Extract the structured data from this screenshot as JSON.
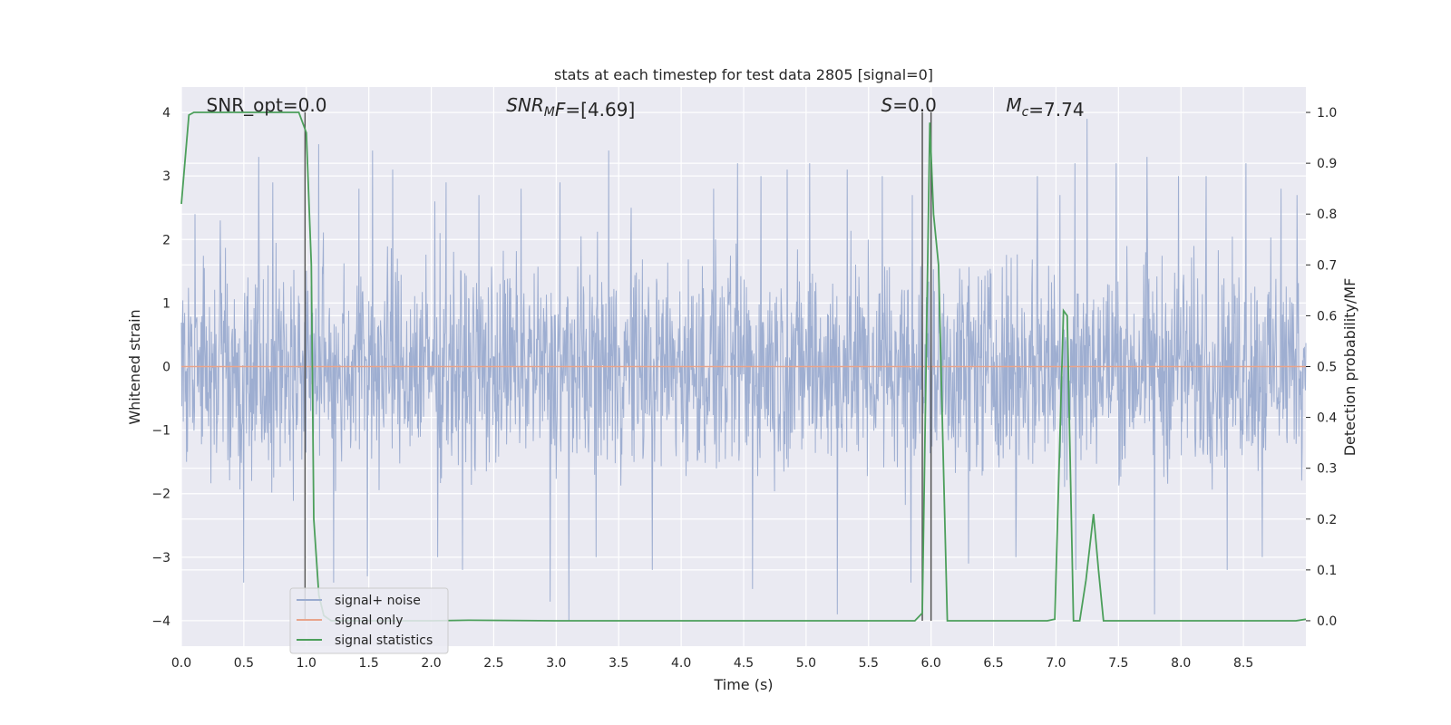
{
  "chart_data": {
    "type": "line",
    "title": "stats at each timestep for test data 2805 [signal=0]",
    "xlabel": "Time (s)",
    "ylabel_left": "Whitened strain",
    "ylabel_right": "Detection probability/MF",
    "xlim": [
      0.0,
      9.0
    ],
    "ylim_left": [
      -4.4,
      4.4
    ],
    "ylim_right": [
      -0.05,
      1.05
    ],
    "grid": true,
    "legend_placement": "lower-left",
    "x_ticks": [
      "0.0",
      "0.5",
      "1.0",
      "1.5",
      "2.0",
      "2.5",
      "3.0",
      "3.5",
      "4.0",
      "4.5",
      "5.0",
      "5.5",
      "6.0",
      "6.5",
      "7.0",
      "7.5",
      "8.0",
      "8.5"
    ],
    "y_left_ticks": [
      "4",
      "3",
      "2",
      "1",
      "0",
      "−1",
      "−2",
      "−3",
      "−4"
    ],
    "y_right_ticks": [
      "1.0",
      "0.9",
      "0.8",
      "0.7",
      "0.6",
      "0.5",
      "0.4",
      "0.3",
      "0.2",
      "0.1",
      "0.0"
    ],
    "annotations": [
      {
        "id": "snr-opt",
        "text": "SNR_opt=0.0",
        "x": 0.2
      },
      {
        "id": "snr-mf",
        "text": "=[4.69]",
        "x": 2.6,
        "math": "SNR",
        "sub": "M",
        "suffix": "F"
      },
      {
        "id": "s-value",
        "text": "=0.0",
        "x": 5.6,
        "math": "S"
      },
      {
        "id": "chirp-mass",
        "text": "=7.74",
        "x": 6.6,
        "math": "M",
        "sub": "c"
      }
    ],
    "vlines": [
      0.99,
      5.93,
      6.0
    ],
    "series": [
      {
        "name": "signal+ noise",
        "color": "#9aabcf",
        "axis": "left",
        "amplitude_envelope": {
          "typical_max": 2.3,
          "typical_min": -2.3,
          "peak_max": 4.0,
          "peak_min": -4.0
        },
        "spikes": [
          [
            0.11,
            2.4
          ],
          [
            0.31,
            2.3
          ],
          [
            0.62,
            3.3
          ],
          [
            0.73,
            2.9
          ],
          [
            1.1,
            3.5
          ],
          [
            1.42,
            2.8
          ],
          [
            1.53,
            3.4
          ],
          [
            1.69,
            3.1
          ],
          [
            2.03,
            2.6
          ],
          [
            2.12,
            2.9
          ],
          [
            2.38,
            2.7
          ],
          [
            2.72,
            2.8
          ],
          [
            3.03,
            2.9
          ],
          [
            3.42,
            3.4
          ],
          [
            3.6,
            2.5
          ],
          [
            4.26,
            2.8
          ],
          [
            4.45,
            3.2
          ],
          [
            4.64,
            3.0
          ],
          [
            4.85,
            3.1
          ],
          [
            5.03,
            3.2
          ],
          [
            5.33,
            3.1
          ],
          [
            5.61,
            3.0
          ],
          [
            5.85,
            2.7
          ],
          [
            6.0,
            3.3
          ],
          [
            6.3,
            3.6
          ],
          [
            6.85,
            3.0
          ],
          [
            7.03,
            2.7
          ],
          [
            7.15,
            3.2
          ],
          [
            7.25,
            3.9
          ],
          [
            7.48,
            3.2
          ],
          [
            7.73,
            3.3
          ],
          [
            7.98,
            3.0
          ],
          [
            8.2,
            3.0
          ],
          [
            8.52,
            3.2
          ],
          [
            8.8,
            2.8
          ],
          [
            8.93,
            2.7
          ],
          [
            0.5,
            -3.4
          ],
          [
            1.22,
            -3.4
          ],
          [
            1.49,
            -3.3
          ],
          [
            2.05,
            -3.0
          ],
          [
            2.25,
            -3.2
          ],
          [
            2.95,
            -3.7
          ],
          [
            3.1,
            -4.0
          ],
          [
            3.32,
            -3.0
          ],
          [
            3.77,
            -3.2
          ],
          [
            4.57,
            -3.5
          ],
          [
            5.25,
            -3.9
          ],
          [
            5.84,
            -3.4
          ],
          [
            6.3,
            -3.1
          ],
          [
            6.68,
            -3.0
          ],
          [
            7.16,
            -3.2
          ],
          [
            7.79,
            -3.9
          ],
          [
            8.37,
            -3.2
          ],
          [
            8.65,
            -3.0
          ]
        ]
      },
      {
        "name": "signal only",
        "color": "#e8a48b",
        "axis": "left",
        "x": [
          0.0,
          9.0
        ],
        "y": [
          0.0,
          0.0
        ]
      },
      {
        "name": "signal statistics",
        "color": "#4c9f5b",
        "axis": "right",
        "x": [
          0.0,
          0.06,
          0.1,
          0.2,
          0.5,
          0.8,
          0.94,
          1.0,
          1.04,
          1.06,
          1.1,
          1.14,
          1.2,
          1.3,
          1.5,
          2.0,
          2.3,
          3.0,
          4.0,
          5.0,
          5.5,
          5.87,
          5.93,
          5.99,
          6.02,
          6.06,
          6.1,
          6.13,
          6.5,
          6.8,
          6.93,
          6.99,
          7.06,
          7.09,
          7.14,
          7.19,
          7.24,
          7.3,
          7.34,
          7.38,
          7.45,
          7.6,
          8.0,
          8.5,
          8.92,
          9.0
        ],
        "y": [
          0.82,
          0.995,
          1.0,
          1.0,
          1.0,
          1.0,
          1.0,
          0.96,
          0.7,
          0.2,
          0.05,
          0.01,
          0.0,
          0.0,
          0.0,
          0.0,
          0.001,
          0.0,
          0.0,
          0.0,
          0.0,
          0.0,
          0.015,
          0.98,
          0.8,
          0.7,
          0.3,
          0.0,
          0.0,
          0.0,
          0.0,
          0.003,
          0.61,
          0.6,
          0.0,
          0.0,
          0.08,
          0.21,
          0.1,
          0.0,
          0.0,
          0.0,
          0.0,
          0.0,
          0.0,
          0.003
        ]
      }
    ]
  }
}
